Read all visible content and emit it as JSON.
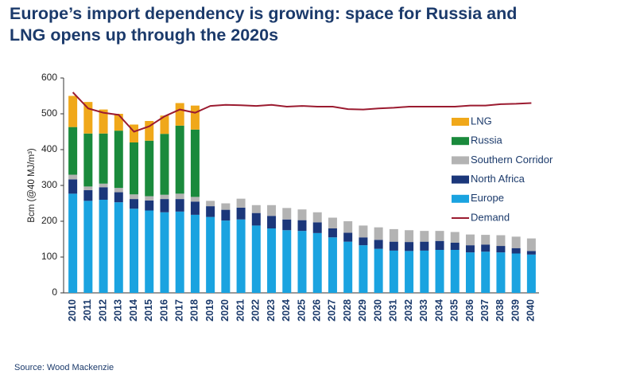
{
  "chart_data": {
    "type": "stacked-bar-line",
    "title": "Europe’s import dependency is growing: space for Russia and LNG opens up through the 2020s",
    "y_label": "Bcm (@40 MJ/m³)",
    "source": "Source: Wood Mackenzie",
    "categories": [
      "2010",
      "2011",
      "2012",
      "2013",
      "2014",
      "2015",
      "2016",
      "2017",
      "2018",
      "2019",
      "2020",
      "2021",
      "2022",
      "2023",
      "2024",
      "2025",
      "2026",
      "2027",
      "2028",
      "2029",
      "2030",
      "2031",
      "2032",
      "2033",
      "2034",
      "2035",
      "2036",
      "2037",
      "2038",
      "2039",
      "2040"
    ],
    "series": [
      {
        "name": "Europe",
        "color": "#1aa3e0",
        "type": "bar",
        "values": [
          277,
          257,
          260,
          253,
          235,
          230,
          225,
          227,
          218,
          212,
          202,
          205,
          188,
          180,
          175,
          173,
          167,
          155,
          143,
          133,
          123,
          118,
          117,
          118,
          120,
          120,
          113,
          115,
          113,
          110,
          107
        ]
      },
      {
        "name": "North Africa",
        "color": "#1b377a",
        "type": "bar",
        "values": [
          40,
          30,
          35,
          28,
          27,
          28,
          37,
          35,
          37,
          30,
          30,
          33,
          35,
          35,
          30,
          30,
          30,
          25,
          25,
          22,
          25,
          25,
          25,
          25,
          25,
          20,
          20,
          20,
          18,
          15,
          10
        ]
      },
      {
        "name": "Southern Corridor",
        "color": "#b3b3b3",
        "type": "bar",
        "values": [
          13,
          10,
          10,
          12,
          13,
          12,
          12,
          15,
          13,
          15,
          18,
          25,
          22,
          30,
          32,
          30,
          28,
          30,
          32,
          33,
          35,
          35,
          33,
          30,
          28,
          30,
          30,
          27,
          30,
          32,
          35
        ]
      },
      {
        "name": "Russia",
        "color": "#1a8a3c",
        "type": "bar",
        "values": [
          133,
          148,
          140,
          160,
          145,
          155,
          170,
          190,
          188,
          null,
          null,
          null,
          null,
          null,
          null,
          null,
          null,
          null,
          null,
          null,
          null,
          null,
          null,
          null,
          null,
          null,
          null,
          null,
          null,
          null,
          null
        ]
      },
      {
        "name": "LNG",
        "color": "#f0a81a",
        "type": "bar",
        "values": [
          87,
          88,
          67,
          47,
          50,
          55,
          51,
          63,
          67,
          null,
          null,
          null,
          null,
          null,
          null,
          null,
          null,
          null,
          null,
          null,
          null,
          null,
          null,
          null,
          null,
          null,
          null,
          null,
          null,
          null,
          null
        ]
      },
      {
        "name": "Demand",
        "color": "#9b1b30",
        "type": "line",
        "values": [
          560,
          515,
          503,
          497,
          450,
          465,
          493,
          512,
          503,
          522,
          525,
          524,
          522,
          525,
          520,
          522,
          520,
          520,
          513,
          512,
          515,
          517,
          520,
          520,
          520,
          520,
          523,
          523,
          527,
          528,
          530
        ]
      }
    ],
    "ylim": [
      0,
      600
    ],
    "yticks": [
      0,
      100,
      200,
      300,
      400,
      500,
      600
    ],
    "grid": false,
    "legend": "right"
  }
}
